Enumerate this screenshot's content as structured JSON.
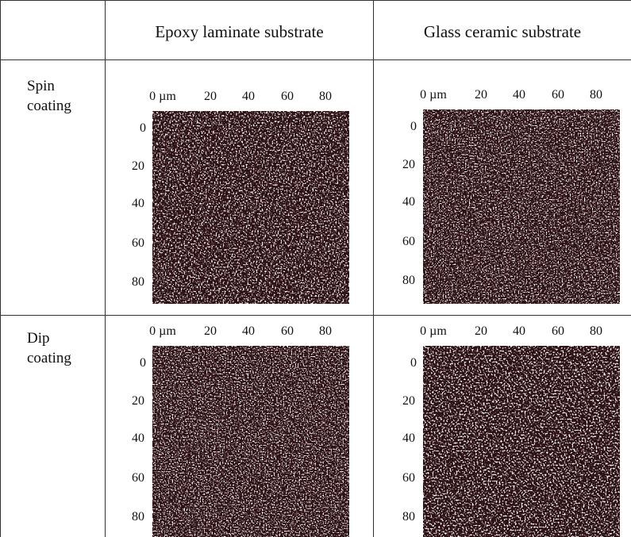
{
  "table": {
    "header": [
      "Epoxy laminate substrate",
      "Glass ceramic substrate"
    ],
    "rows": [
      "Spin coating",
      "Dip coating"
    ],
    "axis": {
      "top": [
        "0 µm",
        "20",
        "40",
        "60",
        "80"
      ],
      "left": [
        "0",
        "20",
        "40",
        "60",
        "80"
      ]
    }
  }
}
